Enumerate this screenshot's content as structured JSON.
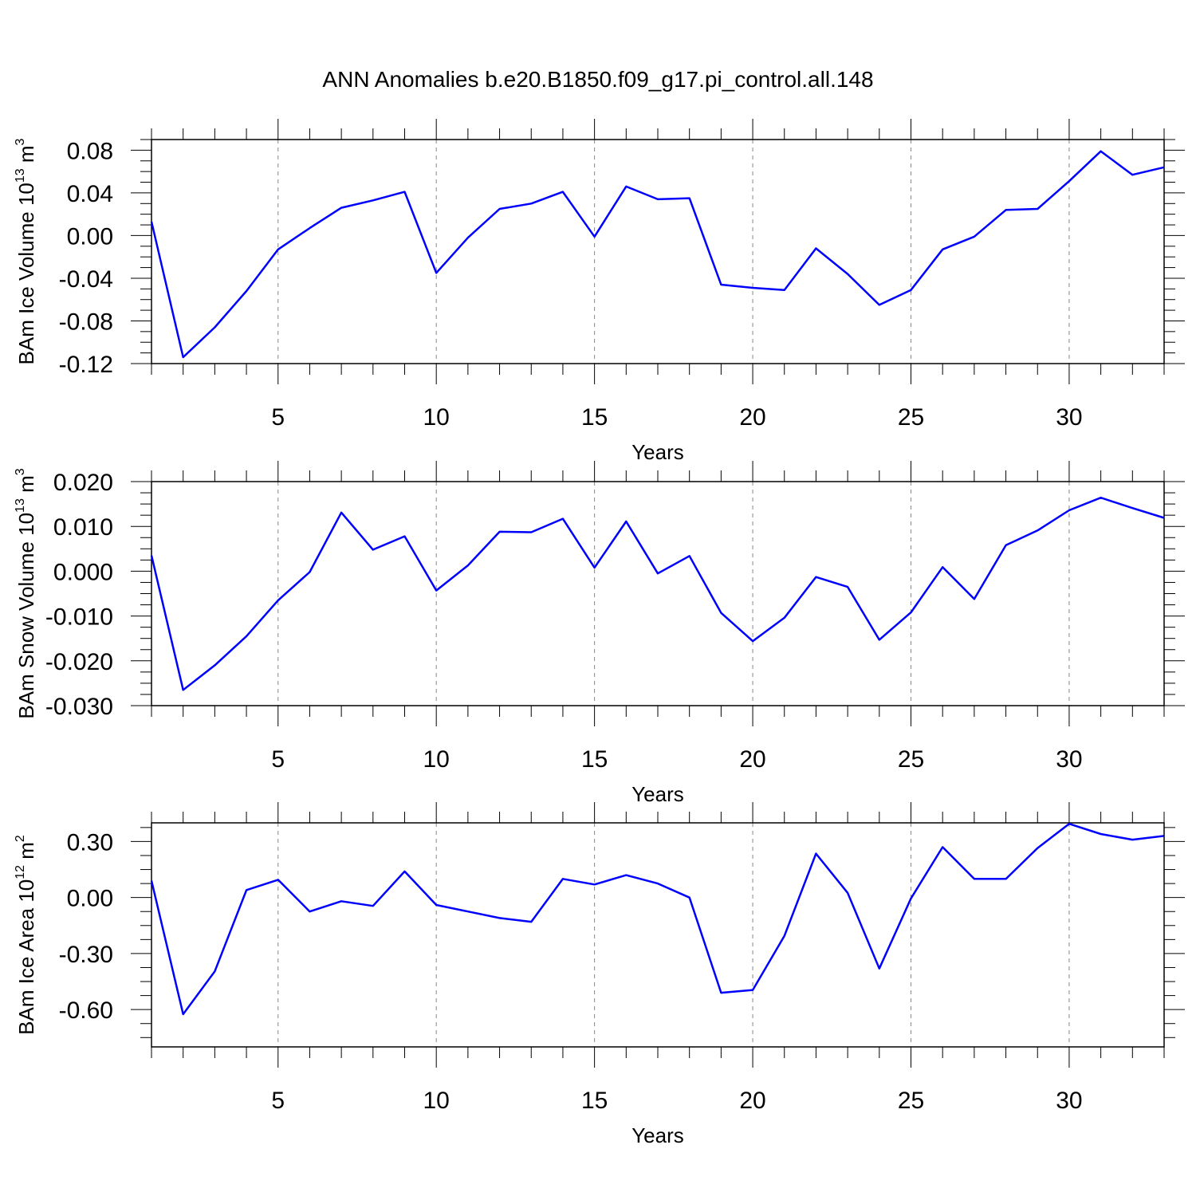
{
  "title": "ANN Anomalies b.e20.B1850.f09_g17.pi_control.all.148",
  "colors": {
    "line": "#0000ff",
    "axis": "#000000",
    "grid": "#888888"
  },
  "chart_data": [
    {
      "type": "line",
      "ylabel": "BAm Ice Volume 10",
      "ylabel_exp": "13",
      "ylabel_unit": " m",
      "ylabel_unit_exp": "3",
      "xlabel": "Years",
      "xlim": [
        1,
        33
      ],
      "ylim": [
        -0.12,
        0.09
      ],
      "yticks": [
        -0.12,
        -0.08,
        -0.04,
        0.0,
        0.04,
        0.08
      ],
      "yticklabels": [
        "-0.12",
        "-0.08",
        "-0.04",
        "0.00",
        "0.04",
        "0.08"
      ],
      "xticks": [
        5,
        10,
        15,
        20,
        25,
        30
      ],
      "xticklabels": [
        "5",
        "10",
        "15",
        "20",
        "25",
        "30"
      ],
      "vgrid": true,
      "x": [
        1,
        2,
        3,
        4,
        5,
        6,
        7,
        8,
        9,
        10,
        11,
        12,
        13,
        14,
        15,
        16,
        17,
        18,
        19,
        20,
        21,
        22,
        23,
        24,
        25,
        26,
        27,
        28,
        29,
        30,
        31,
        32,
        33
      ],
      "y": [
        0.013,
        -0.114,
        -0.086,
        -0.052,
        -0.013,
        0.007,
        0.026,
        0.033,
        0.041,
        -0.035,
        -0.002,
        0.025,
        0.03,
        0.041,
        -0.001,
        0.046,
        0.034,
        0.035,
        -0.046,
        -0.049,
        -0.051,
        -0.012,
        -0.036,
        -0.065,
        -0.051,
        -0.013,
        -0.001,
        0.024,
        0.025,
        0.051,
        0.079,
        0.057,
        0.064
      ]
    },
    {
      "type": "line",
      "ylabel": "BAm Snow Volume 10",
      "ylabel_exp": "13",
      "ylabel_unit": " m",
      "ylabel_unit_exp": "3",
      "xlabel": "Years",
      "xlim": [
        1,
        33
      ],
      "ylim": [
        -0.03,
        0.02
      ],
      "yticks": [
        -0.03,
        -0.02,
        -0.01,
        0.0,
        0.01,
        0.02
      ],
      "yticklabels": [
        "-0.030",
        "-0.020",
        "-0.010",
        "0.000",
        "0.010",
        "0.020"
      ],
      "xticks": [
        5,
        10,
        15,
        20,
        25,
        30
      ],
      "xticklabels": [
        "5",
        "10",
        "15",
        "20",
        "25",
        "30"
      ],
      "vgrid": true,
      "x": [
        1,
        2,
        3,
        4,
        5,
        6,
        7,
        8,
        9,
        10,
        11,
        12,
        13,
        14,
        15,
        16,
        17,
        18,
        19,
        20,
        21,
        22,
        23,
        24,
        25,
        26,
        27,
        28,
        29,
        30,
        31,
        32,
        33
      ],
      "y": [
        0.0035,
        -0.0265,
        -0.021,
        -0.0145,
        -0.0065,
        -0.0002,
        0.0131,
        0.0048,
        0.0078,
        -0.0043,
        0.0013,
        0.0088,
        0.0087,
        0.0117,
        0.0008,
        0.0111,
        -0.0005,
        0.0034,
        -0.0093,
        -0.0156,
        -0.0104,
        -0.0013,
        -0.0035,
        -0.0153,
        -0.0092,
        0.0009,
        -0.0062,
        0.0058,
        0.0091,
        0.0136,
        0.0164,
        0.0141,
        0.0119
      ]
    },
    {
      "type": "line",
      "ylabel": "BAm Ice Area 10",
      "ylabel_exp": "12",
      "ylabel_unit": " m",
      "ylabel_unit_exp": "2",
      "xlabel": "Years",
      "xlim": [
        1,
        33
      ],
      "ylim": [
        -0.8,
        0.4
      ],
      "yticks": [
        -0.6,
        -0.3,
        0.0,
        0.3
      ],
      "yticklabels": [
        "-0.60",
        "-0.30",
        "0.00",
        "0.30"
      ],
      "xticks": [
        5,
        10,
        15,
        20,
        25,
        30
      ],
      "xticklabels": [
        "5",
        "10",
        "15",
        "20",
        "25",
        "30"
      ],
      "vgrid": true,
      "x": [
        1,
        2,
        3,
        4,
        5,
        6,
        7,
        8,
        9,
        10,
        11,
        12,
        13,
        14,
        15,
        16,
        17,
        18,
        19,
        20,
        21,
        22,
        23,
        24,
        25,
        26,
        27,
        28,
        29,
        30,
        31,
        32,
        33
      ],
      "y": [
        0.09,
        -0.625,
        -0.395,
        0.04,
        0.095,
        -0.075,
        -0.02,
        -0.045,
        0.14,
        -0.04,
        -0.075,
        -0.11,
        -0.13,
        0.1,
        0.07,
        0.12,
        0.075,
        0.0,
        -0.51,
        -0.495,
        -0.205,
        0.235,
        0.025,
        -0.38,
        -0.005,
        0.27,
        0.1,
        0.1,
        0.265,
        0.395,
        0.34,
        0.31,
        0.33
      ]
    }
  ]
}
